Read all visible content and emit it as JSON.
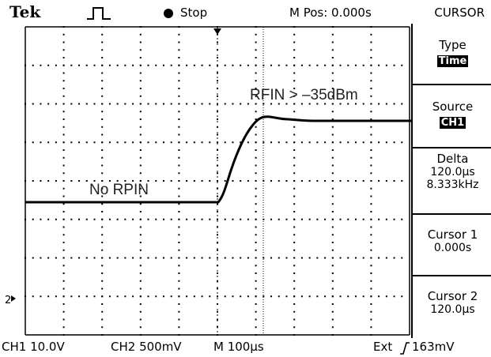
{
  "header": {
    "brand": "Tek",
    "trigger_icon": "trigger-pulse-icon",
    "status": "Stop",
    "m_pos": "M Pos: 0.000s",
    "menu_title": "CURSOR"
  },
  "menu": {
    "type_label": "Type",
    "type_value": "Time",
    "source_label": "Source",
    "source_value": "CH1",
    "delta_label": "Delta",
    "delta_time": "120.0µs",
    "delta_freq": "8.333kHz",
    "cursor1_label": "Cursor 1",
    "cursor1_value": "0.000s",
    "cursor2_label": "Cursor 2",
    "cursor2_value": "120.0µs"
  },
  "screen": {
    "annotation_left": "No RPIN",
    "annotation_right": "RFIN > –35dBm",
    "ch2_marker": "2"
  },
  "footer": {
    "ch1": "CH1 10.0V",
    "ch2": "CH2 500mV",
    "timebase": "M 100µs",
    "trigger": "Ext",
    "trigger_icon": "rising-edge-icon",
    "trigger_level": "163mV"
  },
  "colors": {
    "background": "#ffffff",
    "trace": "#000000",
    "grid": "#000000"
  }
}
